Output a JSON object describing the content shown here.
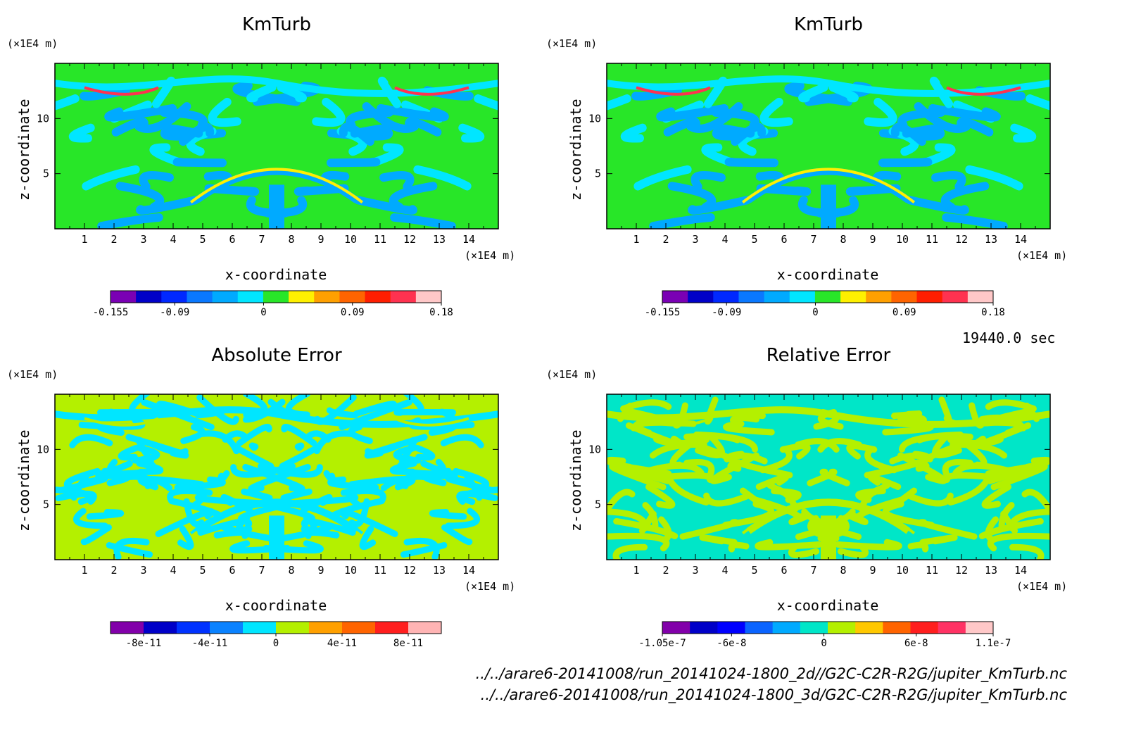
{
  "chart_data": [
    {
      "type": "heatmap",
      "title": "KmTurb",
      "xlabel": "x-coordinate",
      "ylabel": "z-coordinate",
      "x_unit": "(×1E4 m)",
      "y_unit": "(×1E4 m)",
      "xlim": [
        0,
        15
      ],
      "ylim": [
        0,
        15
      ],
      "x_ticks": [
        1,
        2,
        3,
        4,
        5,
        6,
        7,
        8,
        9,
        10,
        11,
        12,
        13,
        14
      ],
      "y_ticks": [
        5,
        10
      ],
      "colorbar": {
        "colors": [
          "#7a00b4",
          "#0000c8",
          "#0028ff",
          "#0a78ff",
          "#00aaff",
          "#00e6ff",
          "#28e628",
          "#fff000",
          "#ffa000",
          "#ff6400",
          "#ff1e00",
          "#ff3250",
          "#ffc8c8"
        ],
        "tick_labels": [
          "-0.155",
          "-0.09",
          "0",
          "0.09",
          "0.18"
        ],
        "tick_values": [
          -0.155,
          -0.09,
          0,
          0.09,
          0.18
        ],
        "range": [
          -0.155,
          0.18
        ]
      }
    },
    {
      "type": "heatmap",
      "title": "KmTurb",
      "xlabel": "x-coordinate",
      "ylabel": "z-coordinate",
      "x_unit": "(×1E4 m)",
      "y_unit": "(×1E4 m)",
      "xlim": [
        0,
        15
      ],
      "ylim": [
        0,
        15
      ],
      "x_ticks": [
        1,
        2,
        3,
        4,
        5,
        6,
        7,
        8,
        9,
        10,
        11,
        12,
        13,
        14
      ],
      "y_ticks": [
        5,
        10
      ],
      "colorbar": {
        "colors": [
          "#7a00b4",
          "#0000c8",
          "#0028ff",
          "#0a78ff",
          "#00aaff",
          "#00e6ff",
          "#28e628",
          "#fff000",
          "#ffa000",
          "#ff6400",
          "#ff1e00",
          "#ff3250",
          "#ffc8c8"
        ],
        "tick_labels": [
          "-0.155",
          "-0.09",
          "0",
          "0.09",
          "0.18"
        ],
        "tick_values": [
          -0.155,
          -0.09,
          0,
          0.09,
          0.18
        ],
        "range": [
          -0.155,
          0.18
        ]
      }
    },
    {
      "type": "heatmap",
      "title": "Absolute Error",
      "xlabel": "x-coordinate",
      "ylabel": "z-coordinate",
      "x_unit": "(×1E4 m)",
      "y_unit": "(×1E4 m)",
      "xlim": [
        0,
        15
      ],
      "ylim": [
        0,
        15
      ],
      "x_ticks": [
        1,
        2,
        3,
        4,
        5,
        6,
        7,
        8,
        9,
        10,
        11,
        12,
        13,
        14
      ],
      "y_ticks": [
        5,
        10
      ],
      "colorbar": {
        "colors": [
          "#8200aa",
          "#0000c8",
          "#0032ff",
          "#0a82ff",
          "#00e6ff",
          "#b4f000",
          "#ffa000",
          "#ff6400",
          "#ff1e1e",
          "#ffb4b4"
        ],
        "tick_labels": [
          "-8e-11",
          "-4e-11",
          "0",
          "4e-11",
          "8e-11"
        ],
        "tick_values": [
          -8e-11,
          -4e-11,
          0,
          4e-11,
          8e-11
        ],
        "range": [
          -1e-10,
          1e-10
        ]
      }
    },
    {
      "type": "heatmap",
      "title": "Relative Error",
      "xlabel": "x-coordinate",
      "ylabel": "z-coordinate",
      "x_unit": "(×1E4 m)",
      "y_unit": "(×1E4 m)",
      "xlim": [
        0,
        15
      ],
      "ylim": [
        0,
        15
      ],
      "x_ticks": [
        1,
        2,
        3,
        4,
        5,
        6,
        7,
        8,
        9,
        10,
        11,
        12,
        13,
        14
      ],
      "y_ticks": [
        5,
        10
      ],
      "colorbar": {
        "colors": [
          "#8200aa",
          "#0000c8",
          "#0000ff",
          "#0a64ff",
          "#00aaff",
          "#00e6c8",
          "#b4f000",
          "#ffc800",
          "#ff6400",
          "#ff1e1e",
          "#ff3264",
          "#ffc8c8"
        ],
        "tick_labels": [
          "-1.05e-7",
          "-6e-8",
          "0",
          "6e-8",
          "1.1e-7"
        ],
        "tick_values": [
          -1.05e-07,
          -6e-08,
          0,
          6e-08,
          1.1e-07
        ],
        "range": [
          -1.05e-07,
          1.1e-07
        ]
      }
    }
  ],
  "time_label": "19440.0 sec",
  "file_paths": [
    "../../arare6-20141008/run_20141024-1800_2d//G2C-C2R-R2G/jupiter_KmTurb.nc",
    "../../arare6-20141008/run_20141024-1800_3d/G2C-C2R-R2G/jupiter_KmTurb.nc"
  ]
}
